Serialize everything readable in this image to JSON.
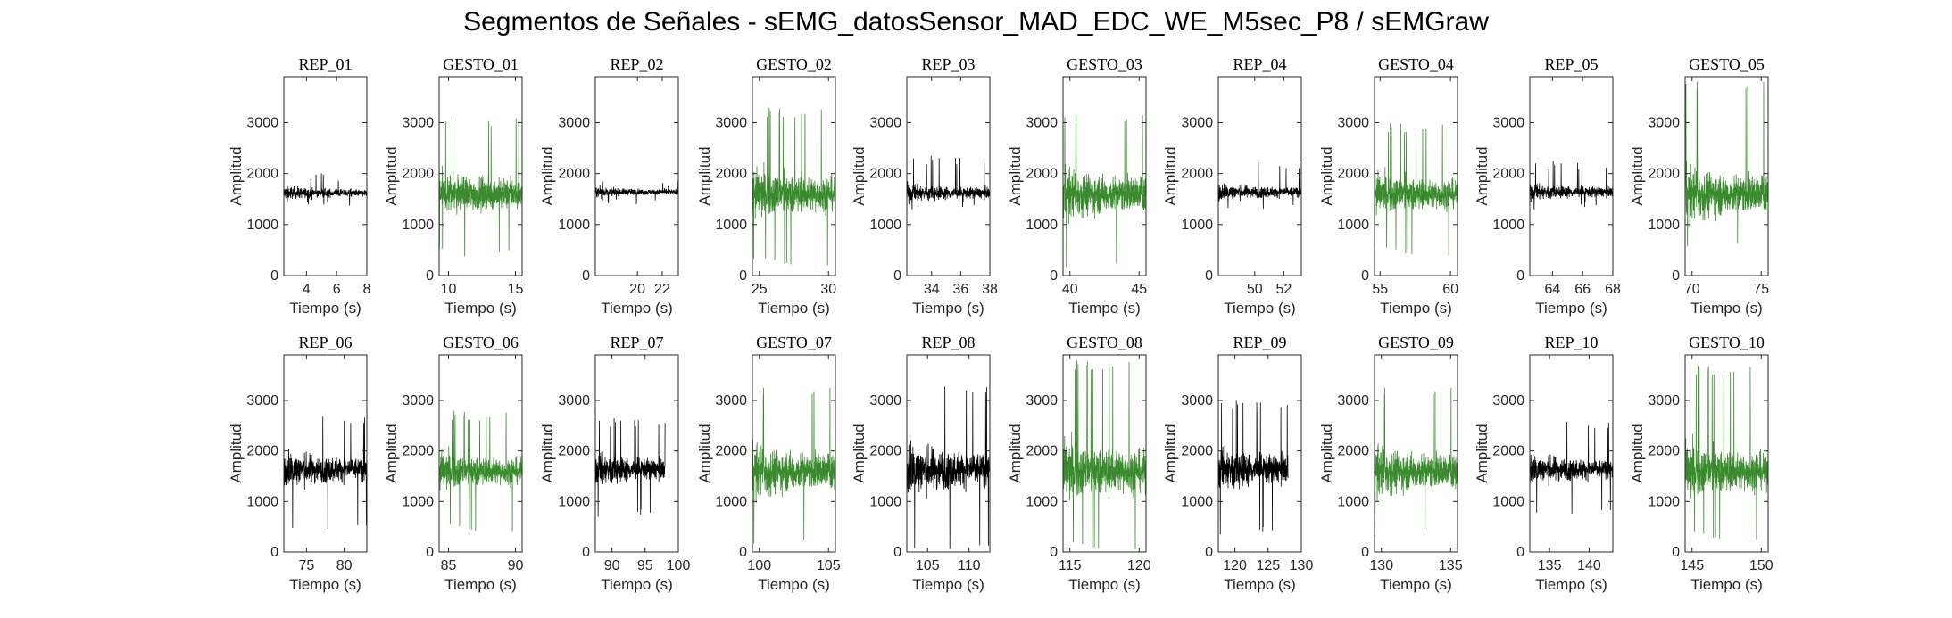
{
  "figure": {
    "title": "Segmentos de Señales - sEMG_datosSensor_MAD_EDC_WE_M5sec_P8 / sEMGraw"
  },
  "colors": {
    "rep": "#000000",
    "gesto": "#3a8a2e",
    "axis": "#262626"
  },
  "chart_data": [
    {
      "type": "line",
      "title": "REP_01",
      "kind": "rep",
      "xlim": [
        2.5,
        8
      ],
      "xticks": [
        4,
        6,
        8
      ],
      "ylim": [
        0,
        3900
      ],
      "yticks": [
        0,
        1000,
        2000,
        3000
      ],
      "xlabel": "Tiempo (s)",
      "ylabel": "Amplitud",
      "series": [
        {
          "x_range": [
            2.5,
            8
          ],
          "center": 1620,
          "spread": [
            1300,
            2050
          ]
        }
      ]
    },
    {
      "type": "line",
      "title": "GESTO_01",
      "kind": "gesto",
      "xlim": [
        9.3,
        15.5
      ],
      "xticks": [
        10,
        15
      ],
      "ylim": [
        0,
        3900
      ],
      "yticks": [
        0,
        1000,
        2000,
        3000
      ],
      "xlabel": "Tiempo (s)",
      "ylabel": "Amplitud",
      "series": [
        {
          "x_range": [
            9.3,
            15.5
          ],
          "center": 1600,
          "spread": [
            350,
            3100
          ]
        }
      ]
    },
    {
      "type": "line",
      "title": "REP_02",
      "kind": "rep",
      "xlim": [
        16.6,
        23.3
      ],
      "xticks": [
        20,
        22
      ],
      "ylim": [
        0,
        3900
      ],
      "yticks": [
        0,
        1000,
        2000,
        3000
      ],
      "xlabel": "Tiempo (s)",
      "ylabel": "Amplitud",
      "series": [
        {
          "x_range": [
            16.6,
            23.3
          ],
          "center": 1640,
          "spread": [
            1380,
            1900
          ]
        }
      ]
    },
    {
      "type": "line",
      "title": "GESTO_02",
      "kind": "gesto",
      "xlim": [
        24.5,
        30.5
      ],
      "xticks": [
        25,
        30
      ],
      "ylim": [
        0,
        3900
      ],
      "yticks": [
        0,
        1000,
        2000,
        3000
      ],
      "xlabel": "Tiempo (s)",
      "ylabel": "Amplitud",
      "series": [
        {
          "x_range": [
            24.5,
            30.5
          ],
          "center": 1600,
          "spread": [
            200,
            3300
          ]
        }
      ]
    },
    {
      "type": "line",
      "title": "REP_03",
      "kind": "rep",
      "xlim": [
        32.3,
        38
      ],
      "xticks": [
        34,
        36,
        38
      ],
      "ylim": [
        0,
        3900
      ],
      "yticks": [
        0,
        1000,
        2000,
        3000
      ],
      "xlabel": "Tiempo (s)",
      "ylabel": "Amplitud",
      "series": [
        {
          "x_range": [
            32.3,
            38
          ],
          "center": 1620,
          "spread": [
            1250,
            2350
          ]
        }
      ]
    },
    {
      "type": "line",
      "title": "GESTO_03",
      "kind": "gesto",
      "xlim": [
        39.5,
        45.5
      ],
      "xticks": [
        40,
        45
      ],
      "ylim": [
        0,
        3900
      ],
      "yticks": [
        0,
        1000,
        2000,
        3000
      ],
      "xlabel": "Tiempo (s)",
      "ylabel": "Amplitud",
      "series": [
        {
          "x_range": [
            39.5,
            45.5
          ],
          "center": 1600,
          "spread": [
            50,
            3200
          ]
        }
      ]
    },
    {
      "type": "line",
      "title": "REP_04",
      "kind": "rep",
      "xlim": [
        47.5,
        53.2
      ],
      "xticks": [
        50,
        52
      ],
      "ylim": [
        0,
        3900
      ],
      "yticks": [
        0,
        1000,
        2000,
        3000
      ],
      "xlabel": "Tiempo (s)",
      "ylabel": "Amplitud",
      "series": [
        {
          "x_range": [
            47.5,
            53.2
          ],
          "center": 1640,
          "spread": [
            1250,
            2250
          ]
        }
      ]
    },
    {
      "type": "line",
      "title": "GESTO_04",
      "kind": "gesto",
      "xlim": [
        54.6,
        60.5
      ],
      "xticks": [
        55,
        60
      ],
      "ylim": [
        0,
        3900
      ],
      "yticks": [
        0,
        1000,
        2000,
        3000
      ],
      "xlabel": "Tiempo (s)",
      "ylabel": "Amplitud",
      "series": [
        {
          "x_range": [
            54.6,
            60.5
          ],
          "center": 1600,
          "spread": [
            400,
            3000
          ]
        }
      ]
    },
    {
      "type": "line",
      "title": "REP_05",
      "kind": "rep",
      "xlim": [
        62.5,
        68
      ],
      "xticks": [
        64,
        66,
        68
      ],
      "ylim": [
        0,
        3900
      ],
      "yticks": [
        0,
        1000,
        2000,
        3000
      ],
      "xlabel": "Tiempo (s)",
      "ylabel": "Amplitud",
      "series": [
        {
          "x_range": [
            62.5,
            68
          ],
          "center": 1640,
          "spread": [
            1250,
            2250
          ]
        }
      ]
    },
    {
      "type": "line",
      "title": "GESTO_05",
      "kind": "gesto",
      "xlim": [
        69.5,
        75.5
      ],
      "xticks": [
        70,
        75
      ],
      "ylim": [
        0,
        3900
      ],
      "yticks": [
        0,
        1000,
        2000,
        3000
      ],
      "xlabel": "Tiempo (s)",
      "ylabel": "Amplitud",
      "series": [
        {
          "x_range": [
            69.5,
            75.5
          ],
          "center": 1600,
          "spread": [
            450,
            3850
          ]
        }
      ]
    },
    {
      "type": "line",
      "title": "REP_06",
      "kind": "rep",
      "xlim": [
        72,
        83
      ],
      "xticks": [
        75,
        80
      ],
      "ylim": [
        0,
        3900
      ],
      "yticks": [
        0,
        1000,
        2000,
        3000
      ],
      "xlabel": "Tiempo (s)",
      "ylabel": "Amplitud",
      "series": [
        {
          "x_range": [
            72,
            83
          ],
          "center": 1640,
          "spread": [
            400,
            2700
          ]
        }
      ]
    },
    {
      "type": "line",
      "title": "GESTO_06",
      "kind": "gesto",
      "xlim": [
        84.3,
        90.5
      ],
      "xticks": [
        85,
        90
      ],
      "ylim": [
        0,
        3900
      ],
      "yticks": [
        0,
        1000,
        2000,
        3000
      ],
      "xlabel": "Tiempo (s)",
      "ylabel": "Amplitud",
      "series": [
        {
          "x_range": [
            84.3,
            90.5
          ],
          "center": 1600,
          "spread": [
            400,
            2800
          ]
        }
      ]
    },
    {
      "type": "line",
      "title": "REP_07",
      "kind": "rep",
      "xlim": [
        87.5,
        100
      ],
      "xticks": [
        90,
        95,
        100
      ],
      "ylim": [
        0,
        3900
      ],
      "yticks": [
        0,
        1000,
        2000,
        3000
      ],
      "xlabel": "Tiempo (s)",
      "ylabel": "Amplitud",
      "series": [
        {
          "x_range": [
            87.5,
            98
          ],
          "center": 1640,
          "spread": [
            650,
            2650
          ]
        }
      ]
    },
    {
      "type": "line",
      "title": "GESTO_07",
      "kind": "gesto",
      "xlim": [
        99.5,
        105.5
      ],
      "xticks": [
        100,
        105
      ],
      "ylim": [
        0,
        3900
      ],
      "yticks": [
        0,
        1000,
        2000,
        3000
      ],
      "xlabel": "Tiempo (s)",
      "ylabel": "Amplitud",
      "series": [
        {
          "x_range": [
            99.5,
            105.5
          ],
          "center": 1600,
          "spread": [
            50,
            3300
          ]
        }
      ]
    },
    {
      "type": "line",
      "title": "REP_08",
      "kind": "rep",
      "xlim": [
        102.5,
        112.5
      ],
      "xticks": [
        105,
        110
      ],
      "ylim": [
        0,
        3900
      ],
      "yticks": [
        0,
        1000,
        2000,
        3000
      ],
      "xlabel": "Tiempo (s)",
      "ylabel": "Amplitud",
      "series": [
        {
          "x_range": [
            102.5,
            112.5
          ],
          "center": 1640,
          "spread": [
            0,
            3300
          ]
        }
      ]
    },
    {
      "type": "line",
      "title": "GESTO_08",
      "kind": "gesto",
      "xlim": [
        114.5,
        120.5
      ],
      "xticks": [
        115,
        120
      ],
      "ylim": [
        0,
        3900
      ],
      "yticks": [
        0,
        1000,
        2000,
        3000
      ],
      "xlabel": "Tiempo (s)",
      "ylabel": "Amplitud",
      "series": [
        {
          "x_range": [
            114.5,
            120.5
          ],
          "center": 1600,
          "spread": [
            50,
            3800
          ]
        }
      ]
    },
    {
      "type": "line",
      "title": "REP_09",
      "kind": "rep",
      "xlim": [
        117.5,
        130
      ],
      "xticks": [
        120,
        125,
        130
      ],
      "ylim": [
        0,
        3900
      ],
      "yticks": [
        0,
        1000,
        2000,
        3000
      ],
      "xlabel": "Tiempo (s)",
      "ylabel": "Amplitud",
      "series": [
        {
          "x_range": [
            117.5,
            128
          ],
          "center": 1640,
          "spread": [
            300,
            3000
          ]
        }
      ]
    },
    {
      "type": "line",
      "title": "GESTO_09",
      "kind": "gesto",
      "xlim": [
        129.5,
        135.5
      ],
      "xticks": [
        130,
        135
      ],
      "ylim": [
        0,
        3900
      ],
      "yticks": [
        0,
        1000,
        2000,
        3000
      ],
      "xlabel": "Tiempo (s)",
      "ylabel": "Amplitud",
      "series": [
        {
          "x_range": [
            129.5,
            135.5
          ],
          "center": 1600,
          "spread": [
            200,
            3300
          ]
        }
      ]
    },
    {
      "type": "line",
      "title": "REP_10",
      "kind": "rep",
      "xlim": [
        132.5,
        143
      ],
      "xticks": [
        135,
        140
      ],
      "ylim": [
        0,
        3900
      ],
      "yticks": [
        0,
        1000,
        2000,
        3000
      ],
      "xlabel": "Tiempo (s)",
      "ylabel": "Amplitud",
      "series": [
        {
          "x_range": [
            132.5,
            143
          ],
          "center": 1640,
          "spread": [
            700,
            2600
          ]
        }
      ]
    },
    {
      "type": "line",
      "title": "GESTO_10",
      "kind": "gesto",
      "xlim": [
        144.5,
        150.5
      ],
      "xticks": [
        145,
        150
      ],
      "ylim": [
        0,
        3900
      ],
      "yticks": [
        0,
        1000,
        2000,
        3000
      ],
      "xlabel": "Tiempo (s)",
      "ylabel": "Amplitud",
      "series": [
        {
          "x_range": [
            144.5,
            150.5
          ],
          "center": 1600,
          "spread": [
            250,
            3700
          ]
        }
      ]
    }
  ]
}
